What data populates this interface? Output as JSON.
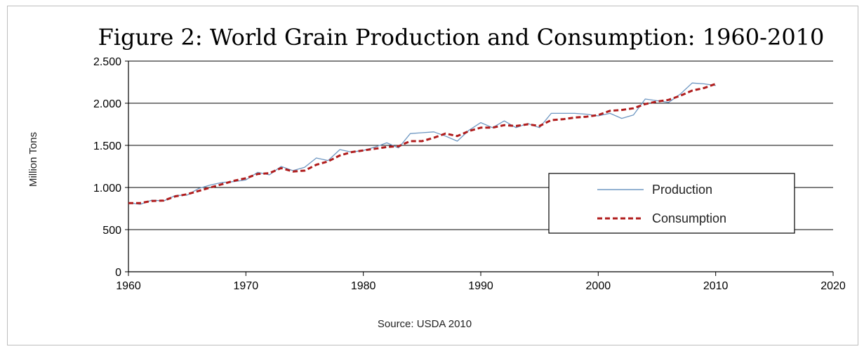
{
  "chart_data": {
    "type": "line",
    "title": "Figure 2: World Grain Production and Consumption: 1960-2010",
    "ylabel": "Million Tons",
    "xlabel": "",
    "source": "Source: USDA 2010",
    "xlim": [
      1960,
      2020
    ],
    "ylim": [
      0,
      2500
    ],
    "x_ticks": [
      1960,
      1970,
      1980,
      1990,
      2000,
      2010,
      2020
    ],
    "y_ticks": [
      0,
      500,
      1000,
      1500,
      2000,
      2500
    ],
    "y_tick_labels": [
      "0",
      "500",
      "1.000",
      "1.500",
      "2.000",
      "2.500"
    ],
    "grid": "horizontal",
    "legend_placement": "center-right",
    "x": [
      1960,
      1961,
      1962,
      1963,
      1964,
      1965,
      1966,
      1967,
      1968,
      1969,
      1970,
      1971,
      1972,
      1973,
      1974,
      1975,
      1976,
      1977,
      1978,
      1979,
      1980,
      1981,
      1982,
      1983,
      1984,
      1985,
      1986,
      1987,
      1988,
      1989,
      1990,
      1991,
      1992,
      1993,
      1994,
      1995,
      1996,
      1997,
      1998,
      1999,
      2000,
      2001,
      2002,
      2003,
      2004,
      2005,
      2006,
      2007,
      2008,
      2009,
      2010
    ],
    "series": [
      {
        "name": "Production",
        "color": "#6e97c2",
        "dash": "solid",
        "values": [
          820,
          800,
          850,
          840,
          905,
          910,
          990,
          1030,
          1060,
          1070,
          1090,
          1180,
          1150,
          1250,
          1200,
          1240,
          1350,
          1320,
          1450,
          1420,
          1440,
          1480,
          1530,
          1470,
          1640,
          1650,
          1660,
          1610,
          1550,
          1680,
          1770,
          1710,
          1790,
          1710,
          1760,
          1710,
          1880,
          1880,
          1880,
          1870,
          1850,
          1880,
          1820,
          1860,
          2050,
          2030,
          2010,
          2110,
          2240,
          2230,
          2210
        ]
      },
      {
        "name": "Consumption",
        "color": "#b01c1c",
        "dash": "dashed",
        "values": [
          815,
          815,
          840,
          845,
          895,
          920,
          960,
          1000,
          1040,
          1080,
          1110,
          1160,
          1170,
          1230,
          1190,
          1200,
          1270,
          1310,
          1380,
          1420,
          1440,
          1460,
          1480,
          1490,
          1550,
          1550,
          1590,
          1640,
          1610,
          1670,
          1710,
          1710,
          1740,
          1730,
          1750,
          1730,
          1800,
          1810,
          1830,
          1840,
          1860,
          1910,
          1920,
          1940,
          1990,
          2020,
          2040,
          2090,
          2150,
          2180,
          2230
        ]
      }
    ]
  }
}
